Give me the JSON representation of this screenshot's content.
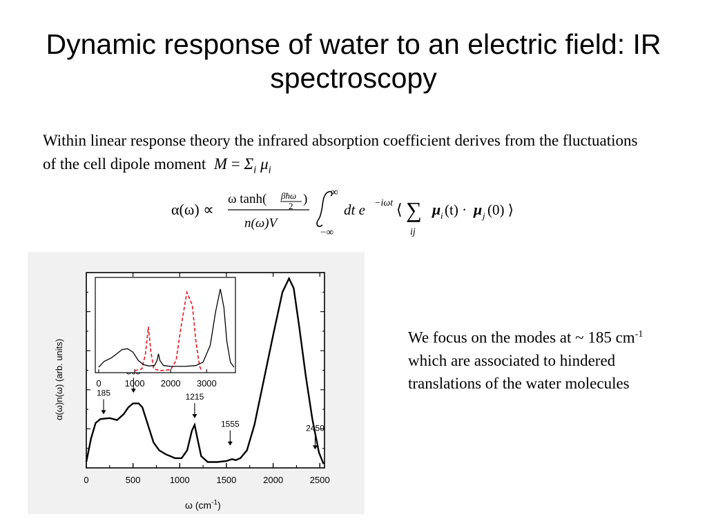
{
  "slide": {
    "title": "Dynamic response of water to an electric field: IR spectroscopy",
    "intro_text": "Within linear response theory the infrared absorption coefficient derives from the fluctuations of the cell dipole moment",
    "intro_math": {
      "M": "M",
      "eq": "=",
      "sigma": "Σ",
      "sub_i": "i",
      "mu": "μ",
      "sub_i2": "i"
    },
    "side_text_1": "We focus on the modes at ~ 185 cm",
    "side_text_sup": "-1",
    "side_text_2": " which are associated to hindered translations of the water molecules"
  },
  "equation": {
    "lhs": "α(ω) ∝",
    "num_a": "ω tanh(",
    "frac_num": "βħω",
    "frac_den": "2",
    "num_b": ")",
    "den": "n(ω)V",
    "upper": "∞",
    "lower": "−∞",
    "integrand": "dt e",
    "exponent": "−iωt",
    "bra": "⟨",
    "sum": "∑",
    "sum_sub": "ij",
    "body": "μ",
    "body_sub1": "i",
    "body_arg1": "(t) · ",
    "body_sub2": "j",
    "body_arg2": "(0) ⟩"
  },
  "chart_data": [
    {
      "type": "line",
      "xlabel": "ω (cm",
      "xlabel_sup": "-1",
      "xlabel_end": ")",
      "ylabel": "α(ω)n(ω)  (arb. units)",
      "xlim": [
        0,
        2550
      ],
      "ylim": [
        0,
        1
      ],
      "x_ticks": [
        0,
        500,
        1000,
        1500,
        2000,
        2500
      ],
      "annotations": [
        {
          "label": "185",
          "x": 185,
          "y": 0.26
        },
        {
          "label": "505",
          "x": 505,
          "y": 0.37
        },
        {
          "label": "1215",
          "x": 1160,
          "y": 0.24
        },
        {
          "label": "1555",
          "x": 1540,
          "y": 0.1
        },
        {
          "label": "2450",
          "x": 2450,
          "y": 0.08
        }
      ],
      "series": [
        {
          "values": [
            [
              0,
              0.03
            ],
            [
              50,
              0.15
            ],
            [
              100,
              0.23
            ],
            [
              150,
              0.25
            ],
            [
              250,
              0.255
            ],
            [
              330,
              0.245
            ],
            [
              400,
              0.275
            ],
            [
              450,
              0.31
            ],
            [
              500,
              0.33
            ],
            [
              560,
              0.33
            ],
            [
              600,
              0.31
            ],
            [
              660,
              0.22
            ],
            [
              720,
              0.13
            ],
            [
              780,
              0.09
            ],
            [
              850,
              0.07
            ],
            [
              950,
              0.05
            ],
            [
              1020,
              0.05
            ],
            [
              1080,
              0.09
            ],
            [
              1130,
              0.19
            ],
            [
              1160,
              0.22
            ],
            [
              1190,
              0.15
            ],
            [
              1230,
              0.06
            ],
            [
              1300,
              0.03
            ],
            [
              1400,
              0.03
            ],
            [
              1500,
              0.035
            ],
            [
              1560,
              0.045
            ],
            [
              1600,
              0.04
            ],
            [
              1650,
              0.05
            ],
            [
              1720,
              0.09
            ],
            [
              1800,
              0.22
            ],
            [
              1900,
              0.45
            ],
            [
              2000,
              0.68
            ],
            [
              2100,
              0.9
            ],
            [
              2170,
              0.97
            ],
            [
              2220,
              0.92
            ],
            [
              2280,
              0.72
            ],
            [
              2350,
              0.47
            ],
            [
              2420,
              0.25
            ],
            [
              2490,
              0.08
            ],
            [
              2540,
              0.02
            ]
          ]
        }
      ]
    },
    {
      "type": "line",
      "x_ticks": [
        0,
        1000,
        2000,
        3000
      ],
      "xlim": [
        0,
        3800
      ],
      "ylim": [
        0,
        1
      ],
      "series": [
        {
          "values": [
            [
              0,
              0.04
            ],
            [
              150,
              0.11
            ],
            [
              350,
              0.15
            ],
            [
              500,
              0.2
            ],
            [
              650,
              0.25
            ],
            [
              800,
              0.26
            ],
            [
              950,
              0.22
            ],
            [
              1100,
              0.12
            ],
            [
              1250,
              0.07
            ],
            [
              1400,
              0.055
            ],
            [
              1550,
              0.06
            ],
            [
              1620,
              0.12
            ],
            [
              1660,
              0.2
            ],
            [
              1700,
              0.12
            ],
            [
              1800,
              0.06
            ],
            [
              2000,
              0.05
            ],
            [
              2400,
              0.05
            ],
            [
              2700,
              0.06
            ],
            [
              2900,
              0.1
            ],
            [
              3100,
              0.3
            ],
            [
              3250,
              0.7
            ],
            [
              3380,
              0.97
            ],
            [
              3480,
              0.75
            ],
            [
              3560,
              0.35
            ],
            [
              3660,
              0.1
            ],
            [
              3760,
              0.04
            ]
          ]
        },
        {
          "values": [
            [
              1000,
              0.0
            ],
            [
              1200,
              0.02
            ],
            [
              1300,
              0.2
            ],
            [
              1380,
              0.52
            ],
            [
              1450,
              0.22
            ],
            [
              1530,
              0.02
            ],
            [
              1700,
              0.0
            ],
            [
              2000,
              0.01
            ],
            [
              2150,
              0.12
            ],
            [
              2300,
              0.55
            ],
            [
              2450,
              0.93
            ],
            [
              2600,
              0.78
            ],
            [
              2700,
              0.35
            ],
            [
              2800,
              0.06
            ],
            [
              2850,
              0.0
            ]
          ]
        }
      ]
    }
  ]
}
